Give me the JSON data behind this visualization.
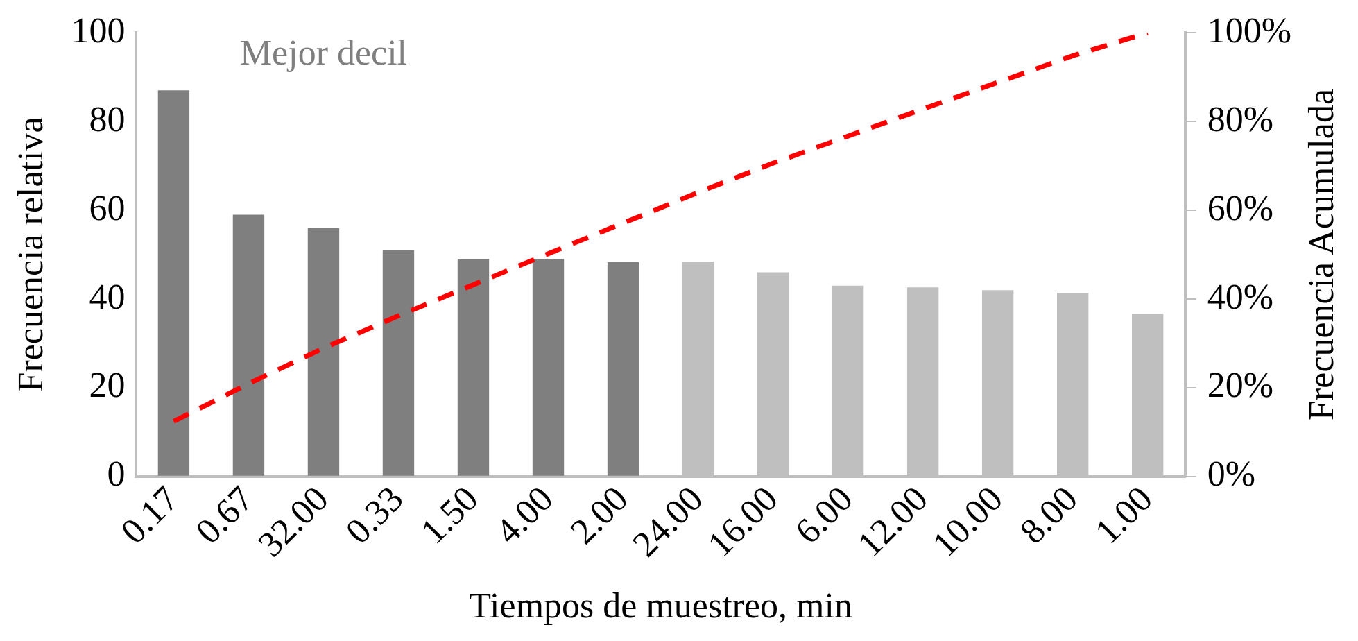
{
  "chart_data": {
    "type": "bar",
    "xlabel": "Tiempos de muestreo, min",
    "ylabel": "Frecuencia relativa",
    "y2label": "Frecuencia Acumulada",
    "categories": [
      "0.17",
      "0.67",
      "32.00",
      "0.33",
      "1.50",
      "4.00",
      "2.00",
      "24.00",
      "16.00",
      "6.00",
      "12.00",
      "10.00",
      "8.00",
      "1.00"
    ],
    "series": [
      {
        "colors": [
          "#7f7f7f",
          "#7f7f7f",
          "#7f7f7f",
          "#7f7f7f",
          "#7f7f7f",
          "#7f7f7f",
          "#7f7f7f",
          "#bfbfbf",
          "#bfbfbf",
          "#bfbfbf",
          "#bfbfbf",
          "#bfbfbf",
          "#bfbfbf",
          "#bfbfbf"
        ],
        "values": [
          87,
          59,
          56,
          51,
          49,
          49,
          48.3,
          48.4,
          46,
          43,
          42.6,
          42,
          41.4,
          36.7
        ]
      },
      {
        "type": "line",
        "axis": "y2",
        "color": "#ff0000",
        "line_style": "dashed",
        "marker": "none",
        "values": [
          12.4,
          20.9,
          28.9,
          36.2,
          43.2,
          50.2,
          57.1,
          64.0,
          70.6,
          76.7,
          82.8,
          88.8,
          94.8,
          100
        ]
      }
    ],
    "ylim": [
      0,
      100
    ],
    "yticks": [
      0,
      20,
      40,
      60,
      80,
      100
    ],
    "y2lim": [
      0,
      100
    ],
    "y2ticks": [
      {
        "value": 0,
        "label": "0%"
      },
      {
        "value": 20,
        "label": "20%"
      },
      {
        "value": 40,
        "label": "40%"
      },
      {
        "value": 60,
        "label": "60%"
      },
      {
        "value": 80,
        "label": "80%"
      },
      {
        "value": 100,
        "label": "100%"
      }
    ],
    "annotations": [
      "Mejor decil"
    ],
    "grid": false,
    "legend": false
  }
}
